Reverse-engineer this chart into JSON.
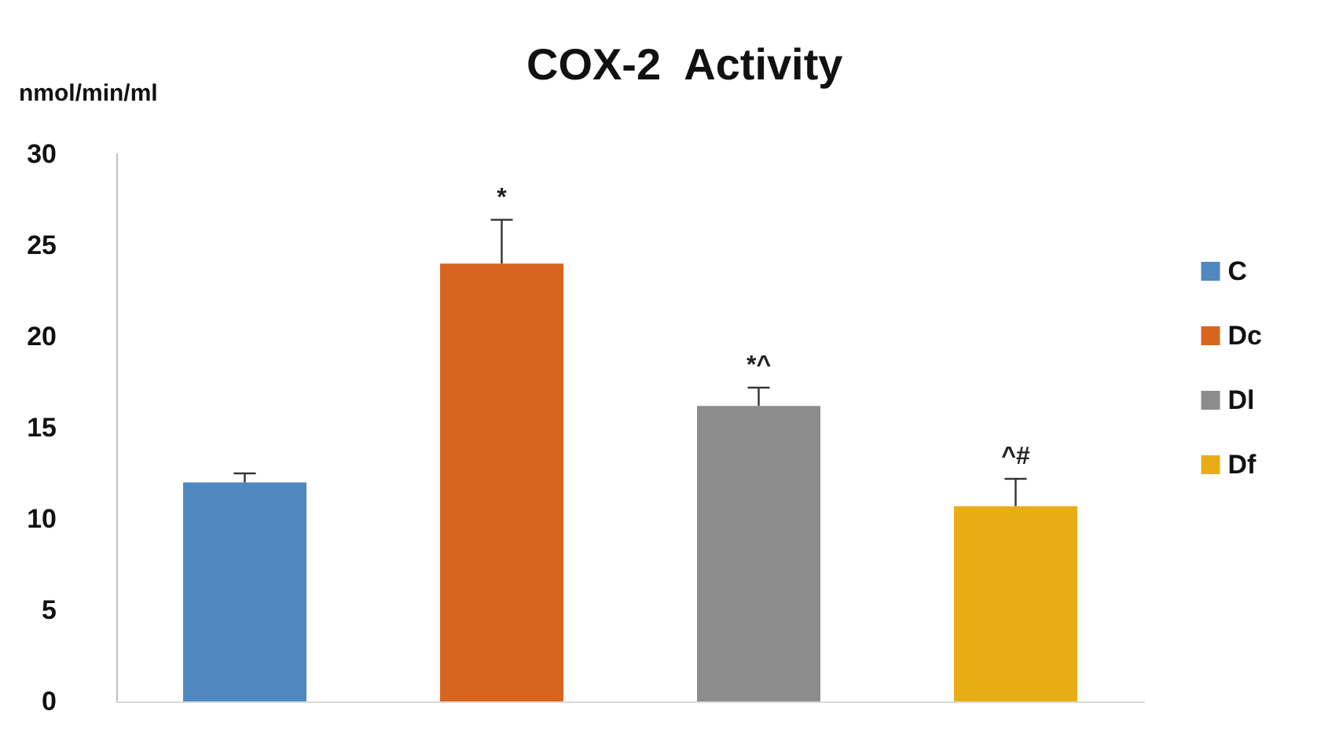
{
  "chart_data": {
    "type": "bar",
    "title": "COX-2  Activity",
    "ylabel": "nmol/min/ml",
    "categories": [
      null,
      null,
      null,
      null
    ],
    "series": [
      {
        "name": "C",
        "color": "#4f87c0",
        "values": [
          12.0,
          null,
          null,
          null
        ],
        "errors": [
          [
            12.0,
            12.5
          ],
          null,
          null,
          null
        ]
      },
      {
        "name": "Dc",
        "color": "#d7651f",
        "values": [
          null,
          24.0,
          null,
          null
        ],
        "errors": [
          null,
          [
            24.0,
            26.4
          ],
          null,
          null
        ],
        "value_labels": [
          null,
          "*",
          null,
          null
        ]
      },
      {
        "name": "Dl",
        "color": "#8c8c8c",
        "values": [
          null,
          null,
          16.2,
          null
        ],
        "errors": [
          null,
          null,
          [
            16.2,
            17.2
          ],
          null
        ],
        "value_labels": [
          null,
          null,
          "*^",
          null
        ]
      },
      {
        "name": "Df",
        "color": "#e8ad14",
        "values": [
          null,
          null,
          null,
          10.7
        ],
        "errors": [
          null,
          null,
          null,
          [
            10.7,
            12.2
          ]
        ],
        "value_labels": [
          null,
          null,
          null,
          "^#"
        ]
      }
    ],
    "ylim": [
      0,
      30
    ],
    "yticks": [
      0,
      5,
      10,
      15,
      20,
      25,
      30
    ],
    "grid": false,
    "legend": "right",
    "tick_labels": "y"
  }
}
